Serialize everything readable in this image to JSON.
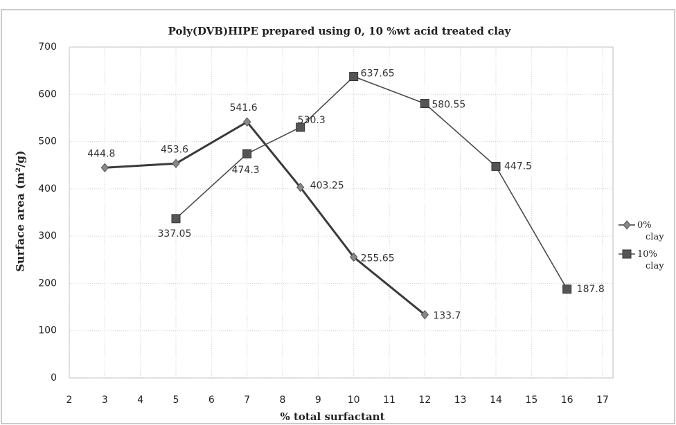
{
  "chart_data": {
    "type": "line",
    "title": "Poly(DVB)HIPE prepared using 0, 10 %wt acid treated clay",
    "x_label": "% total surfactant",
    "y_label": "Surface area (m²/g)",
    "xlim": [
      2,
      17
    ],
    "xticks": [
      2,
      3,
      4,
      5,
      6,
      7,
      8,
      9,
      10,
      11,
      12,
      13,
      14,
      15,
      16,
      17
    ],
    "ylim": [
      0,
      700
    ],
    "yticks": [
      0,
      100,
      200,
      300,
      400,
      500,
      600,
      700
    ],
    "grid": true,
    "legend": "right",
    "series": [
      {
        "name": "0% clay",
        "color": "#3a3a3a",
        "marker": "diamond",
        "x": [
          3,
          5,
          7,
          8.5,
          10,
          12
        ],
        "values": [
          444.8,
          453.6,
          541.6,
          403.25,
          255.65,
          133.7
        ]
      },
      {
        "name": "10% clay",
        "color": "#4a4a4a",
        "marker": "square",
        "x": [
          5,
          7,
          8.5,
          10,
          12,
          14,
          16
        ],
        "values": [
          337.05,
          474.3,
          530.3,
          637.65,
          580.55,
          447.5,
          187.8
        ]
      }
    ]
  }
}
